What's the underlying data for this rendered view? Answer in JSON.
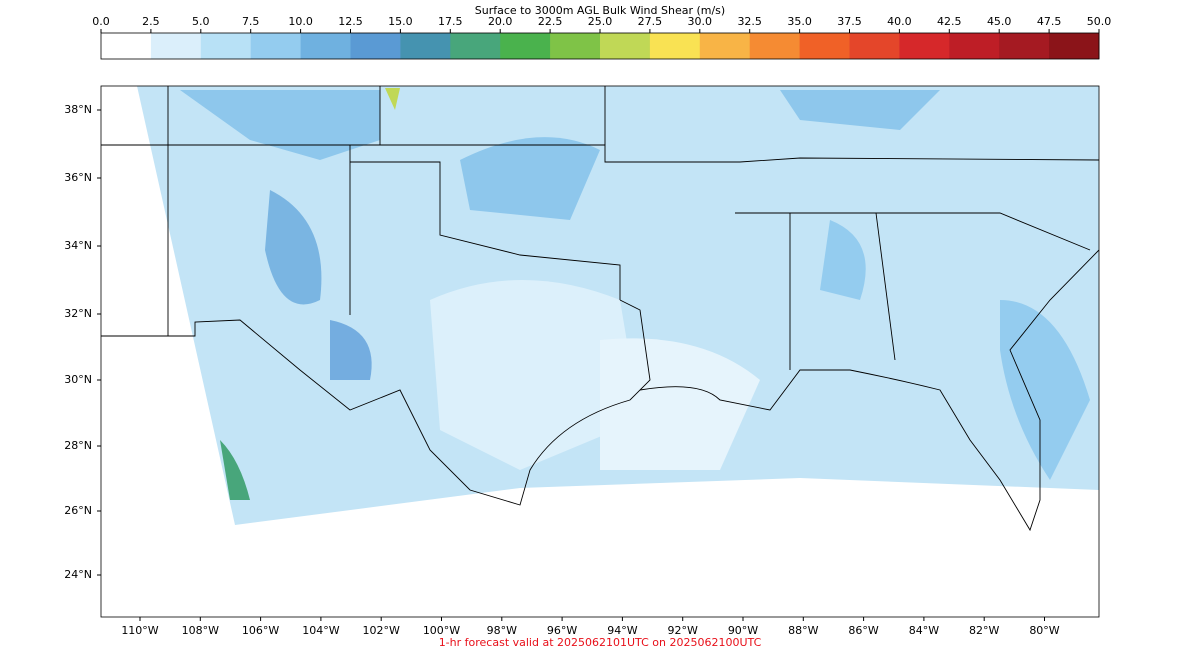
{
  "colorbar": {
    "title": "Surface to 3000m AGL Bulk Wind Shear (m/s)",
    "ticks": [
      {
        "value": 0,
        "label": "0.0"
      },
      {
        "value": 2.5,
        "label": "2.5"
      },
      {
        "value": 5,
        "label": "5.0"
      },
      {
        "value": 7.5,
        "label": "7.5"
      },
      {
        "value": 10,
        "label": "10.0"
      },
      {
        "value": 12.5,
        "label": "12.5"
      },
      {
        "value": 15,
        "label": "15.0"
      },
      {
        "value": 17.5,
        "label": "17.5"
      },
      {
        "value": 20,
        "label": "20.0"
      },
      {
        "value": 22.5,
        "label": "22.5"
      },
      {
        "value": 25,
        "label": "25.0"
      },
      {
        "value": 27.5,
        "label": "27.5"
      },
      {
        "value": 30,
        "label": "30.0"
      },
      {
        "value": 32.5,
        "label": "32.5"
      },
      {
        "value": 35,
        "label": "35.0"
      },
      {
        "value": 37.5,
        "label": "37.5"
      },
      {
        "value": 40,
        "label": "40.0"
      },
      {
        "value": 42.5,
        "label": "42.5"
      },
      {
        "value": 45,
        "label": "45.0"
      },
      {
        "value": 47.5,
        "label": "47.5"
      },
      {
        "value": 50,
        "label": "50.0"
      }
    ],
    "colors": [
      "#ffffff",
      "#dbeffb",
      "#b8e1f6",
      "#94ccef",
      "#6fb1e0",
      "#5a9ad4",
      "#4593b0",
      "#48a67b",
      "#4ab24d",
      "#7fc347",
      "#c0d856",
      "#f9e253",
      "#f8b446",
      "#f58b33",
      "#f06127",
      "#e4462a",
      "#d6282a",
      "#be1e26",
      "#a51a22",
      "#8b1419"
    ]
  },
  "map": {
    "lat_labels": [
      "38°N",
      "36°N",
      "34°N",
      "32°N",
      "30°N",
      "28°N",
      "26°N",
      "24°N"
    ],
    "lon_labels": [
      "110°W",
      "108°W",
      "106°W",
      "104°W",
      "102°W",
      "100°W",
      "98°W",
      "96°W",
      "94°W",
      "92°W",
      "90°W",
      "88°W",
      "86°W",
      "84°W",
      "82°W",
      "80°W"
    ]
  },
  "footer": "1-hr forecast valid at 2025062101UTC on 2025062100UTC"
}
